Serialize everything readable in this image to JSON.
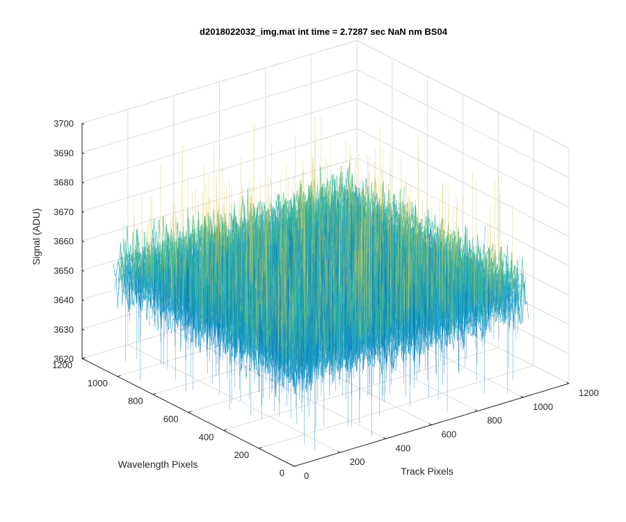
{
  "chart_data": {
    "type": "surface",
    "title": "d2018022032_img.mat int time = 2.7287 sec  NaN nm BS04",
    "xlabel": "Track Pixels",
    "ylabel": "Wavelength Pixels",
    "zlabel": "Signal (ADU)",
    "xlim": [
      0,
      1200
    ],
    "ylim": [
      0,
      1200
    ],
    "zlim": [
      3620,
      3700
    ],
    "x_ticks": [
      "0",
      "200",
      "400",
      "600",
      "800",
      "1000",
      "1200"
    ],
    "y_ticks": [
      "0",
      "200",
      "400",
      "600",
      "800",
      "1000",
      "1200"
    ],
    "z_ticks": [
      "3620",
      "3630",
      "3640",
      "3650",
      "3660",
      "3670",
      "3680",
      "3690",
      "3700"
    ],
    "x_data_range": [
      1,
      1024
    ],
    "y_data_range": [
      1,
      1024
    ],
    "signal_mean": 3655,
    "signal_min": 3622,
    "signal_max": 3692,
    "grid": true,
    "box": true,
    "colormap": "parula",
    "colors": {
      "low": "#0072BD",
      "mid": "#1FA4C8",
      "teal": "#35B69A",
      "high": "#D7C654",
      "axis": "#262626",
      "grid": "#DCDCDC"
    }
  }
}
